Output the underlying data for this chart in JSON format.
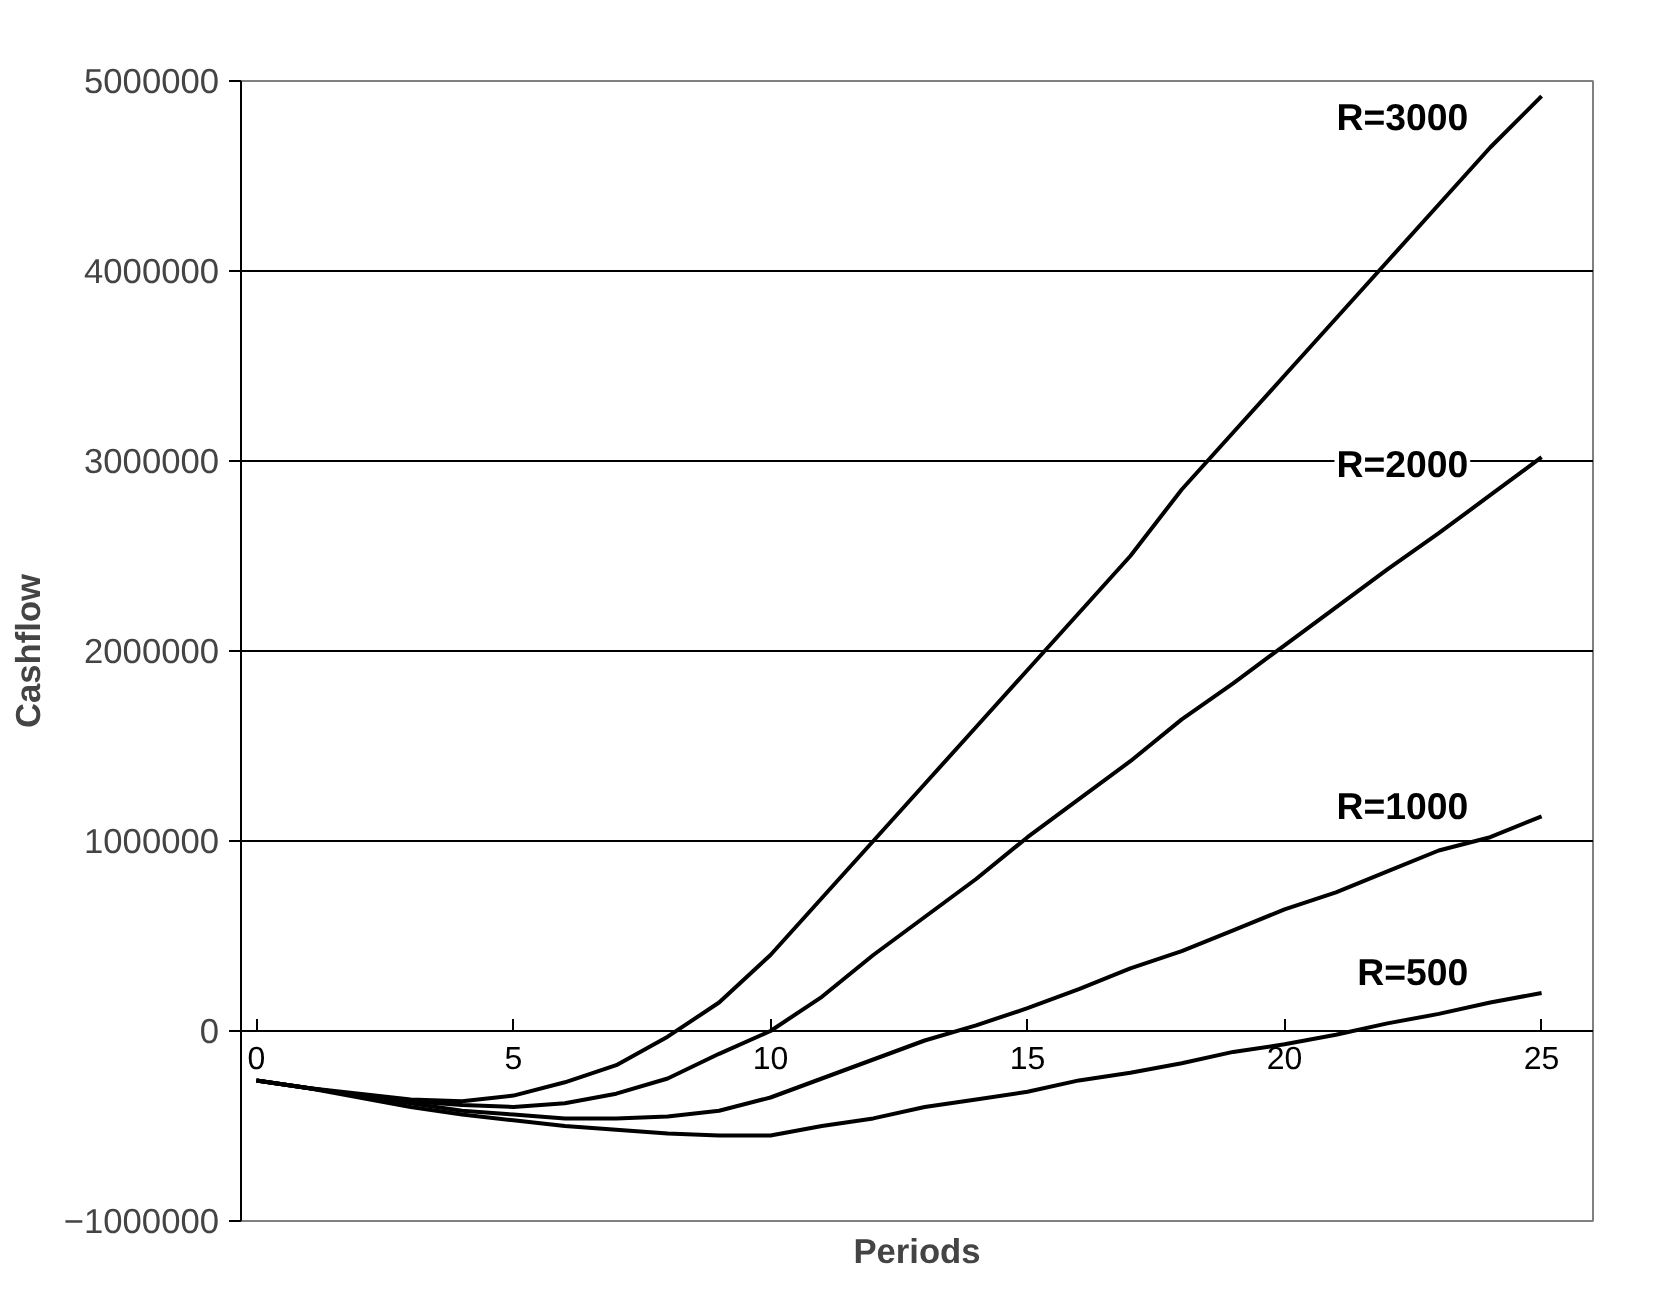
{
  "chart_data": {
    "type": "line",
    "xlabel": "Periods",
    "ylabel": "Cashflow",
    "x": [
      0,
      1,
      2,
      3,
      4,
      5,
      6,
      7,
      8,
      9,
      10,
      11,
      12,
      13,
      14,
      15,
      16,
      17,
      18,
      19,
      20,
      21,
      22,
      23,
      24,
      25
    ],
    "series": [
      {
        "name": "R=3000",
        "color": "#000000",
        "values": [
          -260000,
          -300000,
          -330000,
          -360000,
          -370000,
          -340000,
          -270000,
          -180000,
          -30000,
          150000,
          400000,
          700000,
          1000000,
          1300000,
          1600000,
          1900000,
          2200000,
          2500000,
          2850000,
          3150000,
          3450000,
          3750000,
          4050000,
          4350000,
          4650000,
          4920000
        ]
      },
      {
        "name": "R=2000",
        "color": "#000000",
        "values": [
          -260000,
          -300000,
          -340000,
          -370000,
          -390000,
          -400000,
          -380000,
          -330000,
          -250000,
          -120000,
          0,
          180000,
          400000,
          600000,
          800000,
          1020000,
          1220000,
          1420000,
          1640000,
          1830000,
          2030000,
          2230000,
          2430000,
          2620000,
          2820000,
          3020000
        ]
      },
      {
        "name": "R=1000",
        "color": "#000000",
        "values": [
          -260000,
          -300000,
          -340000,
          -380000,
          -420000,
          -440000,
          -460000,
          -460000,
          -450000,
          -420000,
          -350000,
          -250000,
          -150000,
          -50000,
          30000,
          120000,
          220000,
          330000,
          420000,
          530000,
          640000,
          730000,
          840000,
          950000,
          1020000,
          1130000
        ]
      },
      {
        "name": "R=500",
        "color": "#000000",
        "values": [
          -260000,
          -300000,
          -350000,
          -400000,
          -440000,
          -470000,
          -500000,
          -520000,
          -540000,
          -550000,
          -550000,
          -500000,
          -460000,
          -400000,
          -360000,
          -320000,
          -260000,
          -220000,
          -170000,
          -110000,
          -70000,
          -20000,
          40000,
          90000,
          150000,
          200000
        ]
      }
    ],
    "xlim": [
      -0.3,
      26
    ],
    "ylim": [
      -1000000,
      5000000
    ],
    "xticks": [
      0,
      5,
      10,
      15,
      20,
      25
    ],
    "yticks": [
      -1000000,
      0,
      1000000,
      2000000,
      3000000,
      4000000,
      5000000
    ],
    "grid": "y",
    "legend": false,
    "marker": "none",
    "line_style": "solid"
  }
}
